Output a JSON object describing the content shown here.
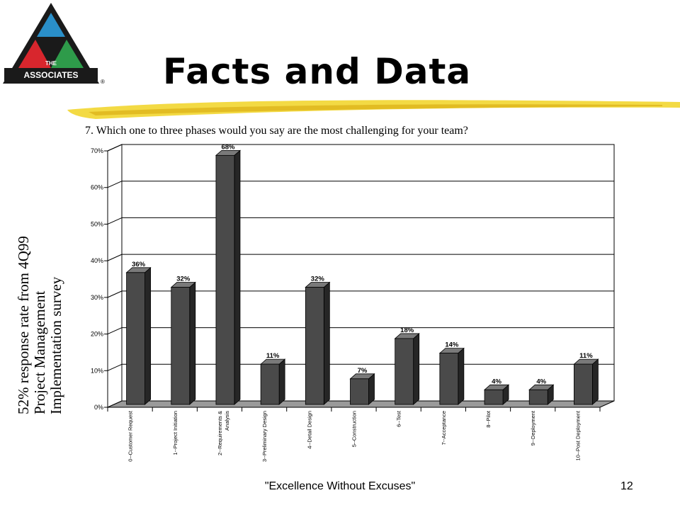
{
  "slide": {
    "title": "Facts and Data",
    "question": "7. Which one to three phases would you say are the most challenging for your team?",
    "side_note": [
      "52% response rate from 4Q99",
      "Project Management",
      "Implementation survey"
    ],
    "footer": "\"Excellence Without Excuses\"",
    "page_number": "12"
  },
  "logo": {
    "text": "THE ASSOCIATES",
    "mark": "®",
    "colors": {
      "outer": "#1a1a1a",
      "red": "#d8262d",
      "blue": "#2a8fc9",
      "green": "#2e9b4a",
      "band": "#1a1a1a"
    }
  },
  "colors": {
    "bar_front": "#4a4a4a",
    "bar_side": "#262626",
    "bar_top": "#7a7a7a",
    "grid": "#000000",
    "stroke": "#f2d630"
  },
  "chart_data": {
    "type": "bar",
    "categories": [
      "0--Customer Request",
      "1--Project Initiation",
      "2--Requirements & Analysis",
      "3--Preliminary Design",
      "4--Detail Design",
      "5--Construction",
      "6--Test",
      "7--Acceptance",
      "8--Pilot",
      "9--Deployment",
      "10--Post Deployment"
    ],
    "values": [
      36,
      32,
      68,
      11,
      32,
      7,
      18,
      14,
      4,
      4,
      11
    ],
    "data_labels": [
      "36%",
      "32%",
      "68%",
      "11%",
      "32%",
      "7%",
      "18%",
      "14%",
      "4%",
      "4%",
      "11%"
    ],
    "y_ticks": [
      "0%",
      "10%",
      "20%",
      "30%",
      "40%",
      "50%",
      "60%",
      "70%"
    ],
    "ylim": [
      0,
      70
    ],
    "grid": true,
    "legend": "none"
  }
}
